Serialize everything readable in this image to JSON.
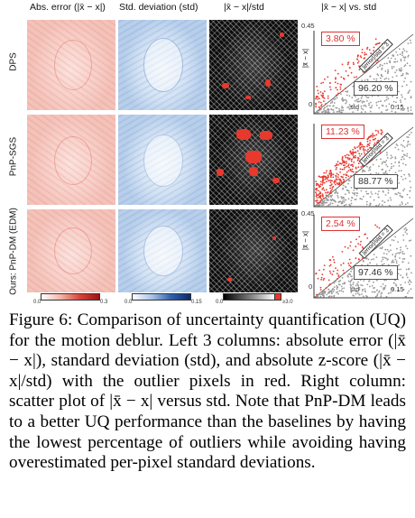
{
  "column_headers": {
    "abs_error": "Abs. error (|x̄ − x|)",
    "std_dev": "Std. deviation (std)",
    "zscore": "|x̄ − x|/std",
    "scatter": "|x̄ − x| vs. std"
  },
  "rows": [
    {
      "label": "DPS",
      "outlier_pct": "3.80 %",
      "inlier_pct": "96.20 %"
    },
    {
      "label": "PnP-SGS",
      "outlier_pct": "11.23 %",
      "inlier_pct": "88.77 %"
    },
    {
      "label": "Ours: PnP-DM (EDM)",
      "outlier_pct": "2.54 %",
      "inlier_pct": "97.46 %"
    }
  ],
  "scatter_axes": {
    "y_max": "0.45",
    "y_min": "0",
    "x_max": "0.15",
    "x_label": "std",
    "y_label": "|x̄ − x|",
    "diag_label": "|error|/std = 3"
  },
  "colorbars": {
    "err_min": "0.0",
    "err_max": "0.3",
    "std_min": "0.0",
    "std_max": "0.15",
    "z_min": "0.0",
    "z_max": "≥3.0"
  },
  "caption": {
    "text": "Figure 6: Comparison of uncertainty quantification (UQ) for the motion deblur. Left 3 columns: absolute error (|x̄ − x|), standard deviation (std), and absolute z-score (|x̄ − x|/std) with the outlier pixels in red. Right column: scatter plot of |x̄ − x| versus std. Note that PnP-DM leads to a better UQ performance than the baselines by having the lowest percentage of outliers while avoiding having overestimated per-pixel standard deviations."
  },
  "colors": {
    "outlier_red": "#e8392f",
    "inlier_gray": "#9a9a9a",
    "error_red": "#d9433a",
    "std_blue": "#2f5fae"
  }
}
